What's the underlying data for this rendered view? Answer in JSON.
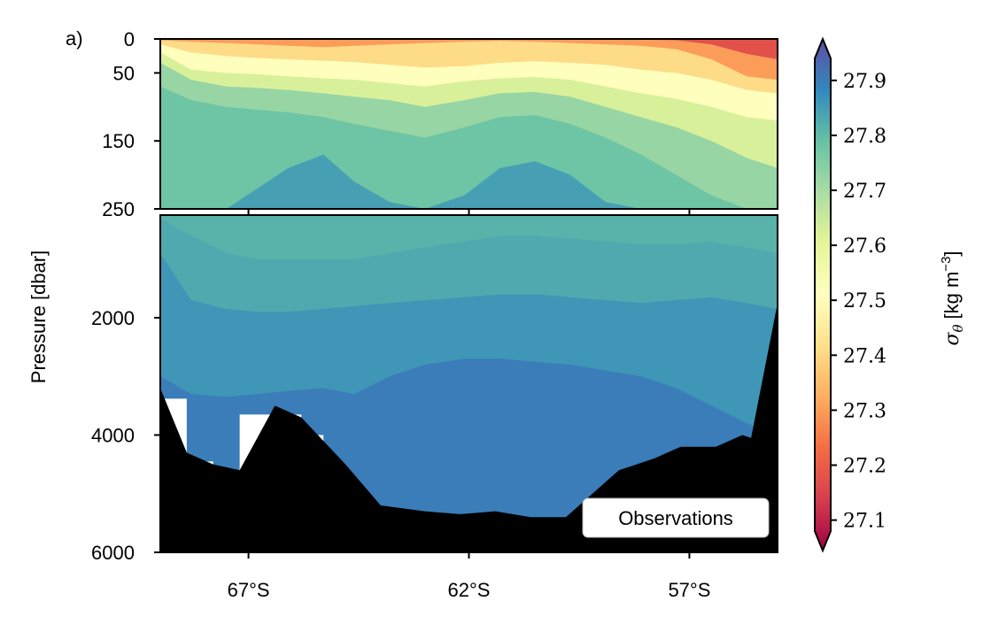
{
  "chart_data": {
    "type": "contour",
    "panel_label": "a)",
    "annotation": "Observations",
    "ylabel": "Pressure [dbar]",
    "colorbar": {
      "label_prefix": "σ",
      "label_sub": "θ",
      "label_units": "[kg m",
      "label_exp": "−3",
      "label_close": "]",
      "range": [
        27.08,
        27.94
      ],
      "ticks": [
        27.1,
        27.2,
        27.3,
        27.4,
        27.5,
        27.6,
        27.7,
        27.8,
        27.9
      ],
      "tick_labels": [
        "27.1",
        "27.2",
        "27.3",
        "27.4",
        "27.5",
        "27.6",
        "27.7",
        "27.8",
        "27.9"
      ],
      "extend": "both",
      "colormap": "Spectral",
      "stops": [
        "#9e0142",
        "#d53e4f",
        "#f46d43",
        "#fdae61",
        "#fee08b",
        "#ffffbf",
        "#e6f598",
        "#abdda4",
        "#66c2a5",
        "#3288bd",
        "#5e4fa2"
      ]
    },
    "x_axis": {
      "range_lat": [
        -69,
        -55
      ],
      "ticks": [
        -67,
        -62,
        -57
      ],
      "tick_labels": [
        "67°S",
        "62°S",
        "57°S"
      ]
    },
    "y_axis_top": {
      "range": [
        0,
        250
      ],
      "ticks": [
        0,
        50,
        150,
        250
      ],
      "tick_labels": [
        "0",
        "50",
        "150",
        "250"
      ]
    },
    "y_axis_bottom": {
      "range": [
        250,
        6000
      ],
      "ticks": [
        2000,
        4000,
        6000
      ],
      "tick_labels": [
        "2000",
        "4000",
        "6000"
      ]
    },
    "stations_lat": [
      -69,
      -68.3,
      -67.5,
      -66.8,
      -66.1,
      -65.3,
      -64.6,
      -63.8,
      -63.0,
      -62.1,
      -61.3,
      -60.5,
      -59.7,
      -58.9,
      -58.1,
      -57.3,
      -56.5,
      -55.7,
      -55.0
    ],
    "isopycnals_top": [
      {
        "sigma": 27.3,
        "depth": [
          1,
          1,
          1,
          1,
          1,
          1,
          1,
          1,
          1,
          1,
          1,
          1,
          1,
          1,
          1,
          2,
          8,
          22,
          30
        ]
      },
      {
        "sigma": 27.4,
        "depth": [
          2,
          4,
          6,
          8,
          10,
          12,
          10,
          8,
          6,
          4,
          3,
          4,
          6,
          8,
          10,
          15,
          30,
          55,
          60
        ]
      },
      {
        "sigma": 27.5,
        "depth": [
          8,
          20,
          25,
          28,
          30,
          32,
          34,
          38,
          42,
          40,
          35,
          33,
          35,
          38,
          45,
          50,
          60,
          75,
          80
        ]
      },
      {
        "sigma": 27.6,
        "depth": [
          20,
          45,
          50,
          52,
          55,
          58,
          60,
          65,
          70,
          62,
          58,
          56,
          60,
          70,
          80,
          88,
          100,
          115,
          120
        ]
      },
      {
        "sigma": 27.7,
        "depth": [
          35,
          60,
          70,
          72,
          75,
          80,
          85,
          90,
          100,
          90,
          80,
          78,
          85,
          100,
          115,
          130,
          150,
          175,
          190
        ]
      },
      {
        "sigma": 27.75,
        "depth": [
          70,
          90,
          100,
          104,
          108,
          115,
          125,
          135,
          145,
          130,
          115,
          112,
          125,
          145,
          170,
          200,
          230,
          250,
          250
        ]
      },
      {
        "sigma": 27.8,
        "depth": [
          250,
          250,
          250,
          220,
          190,
          170,
          210,
          240,
          250,
          230,
          190,
          180,
          200,
          240,
          250,
          250,
          250,
          250,
          250
        ]
      }
    ],
    "isopycnals_bottom": [
      {
        "sigma": 27.8,
        "depth": [
          300,
          600,
          900,
          1000,
          1000,
          1000,
          1000,
          900,
          800,
          700,
          600,
          600,
          650,
          700,
          750,
          750,
          700,
          800,
          900
        ]
      },
      {
        "sigma": 27.83,
        "depth": [
          900,
          1700,
          1850,
          1900,
          1900,
          1850,
          1800,
          1750,
          1700,
          1650,
          1600,
          1600,
          1650,
          1700,
          1750,
          1700,
          1650,
          1750,
          1850
        ]
      },
      {
        "sigma": 27.85,
        "depth": [
          3000,
          3300,
          3350,
          3300,
          3250,
          3200,
          3300,
          3000,
          2800,
          2700,
          2700,
          2750,
          2800,
          2900,
          3000,
          3200,
          3500,
          3800,
          4000
        ]
      }
    ],
    "bathymetry": [
      {
        "lat": -69.0,
        "depth": 3200
      },
      {
        "lat": -68.4,
        "depth": 4300
      },
      {
        "lat": -67.8,
        "depth": 4500
      },
      {
        "lat": -67.2,
        "depth": 4600
      },
      {
        "lat": -66.4,
        "depth": 3500
      },
      {
        "lat": -65.8,
        "depth": 3700
      },
      {
        "lat": -64.8,
        "depth": 4500
      },
      {
        "lat": -64.0,
        "depth": 5200
      },
      {
        "lat": -63.0,
        "depth": 5300
      },
      {
        "lat": -62.2,
        "depth": 5350
      },
      {
        "lat": -61.4,
        "depth": 5300
      },
      {
        "lat": -60.6,
        "depth": 5400
      },
      {
        "lat": -59.8,
        "depth": 5400
      },
      {
        "lat": -58.6,
        "depth": 4600
      },
      {
        "lat": -57.8,
        "depth": 4400
      },
      {
        "lat": -57.2,
        "depth": 4200
      },
      {
        "lat": -56.4,
        "depth": 4200
      },
      {
        "lat": -55.8,
        "depth": 4000
      },
      {
        "lat": -55.6,
        "depth": 4050
      },
      {
        "lat": -55.0,
        "depth": 1750
      }
    ],
    "nodata_gaps": [
      {
        "lat_start": -68.9,
        "lat_end": -68.4,
        "depth_start": 3380,
        "depth_end": 4300
      },
      {
        "lat_start": -68.4,
        "lat_end": -67.8,
        "depth_start": 4450,
        "depth_end": 4550
      },
      {
        "lat_start": -67.2,
        "lat_end": -66.4,
        "depth_start": 3650,
        "depth_end": 4600
      },
      {
        "lat_start": -66.4,
        "lat_end": -65.8,
        "depth_start": 3650,
        "depth_end": 3700
      },
      {
        "lat_start": -65.8,
        "lat_end": -65.3,
        "depth_start": 4000,
        "depth_end": 4400
      },
      {
        "lat_start": -65.3,
        "lat_end": -64.8,
        "depth_start": 4700,
        "depth_end": 4800
      }
    ]
  }
}
